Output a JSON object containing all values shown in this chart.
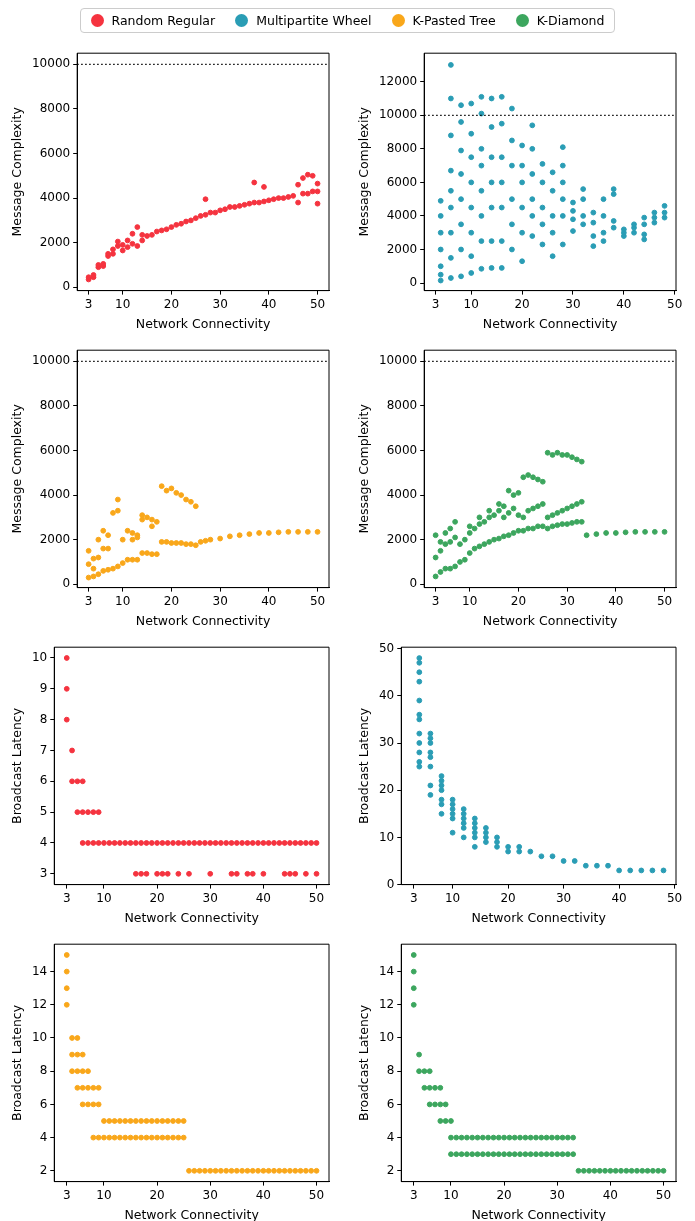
{
  "chart_data": [
    {
      "type": "scatter",
      "xlabel": "Network Connectivity",
      "ylabel": "Message Complexity",
      "xlim": [
        0.65,
        52.35
      ],
      "xticks": [
        3,
        10,
        20,
        30,
        40,
        50
      ],
      "ylim": [
        -150,
        10500
      ],
      "yticks": [
        0,
        2000,
        4000,
        6000,
        8000,
        10000
      ],
      "marker": "circle",
      "legend": "top",
      "grid": false,
      "ref_lines": [
        {
          "axis": "y",
          "value": 10000,
          "color": "#000000",
          "line_style": "dotted"
        }
      ],
      "series": [
        {
          "name": "Random Regular",
          "color": "#f5333f",
          "x": [
            3,
            3,
            4,
            4,
            5,
            5,
            6,
            6,
            7,
            7,
            8,
            8,
            9,
            9,
            10,
            10,
            11,
            11,
            12,
            12,
            13,
            13,
            14,
            14,
            15,
            16,
            17,
            18,
            19,
            20,
            21,
            22,
            23,
            24,
            25,
            26,
            27,
            27,
            28,
            29,
            30,
            31,
            32,
            33,
            34,
            35,
            36,
            37,
            37,
            38,
            39,
            39,
            40,
            41,
            42,
            43,
            44,
            45,
            46,
            46,
            47,
            47,
            48,
            48,
            49,
            49,
            50,
            50,
            50
          ],
          "values": [
            350,
            450,
            450,
            550,
            900,
            1000,
            950,
            1050,
            1400,
            1500,
            1500,
            1700,
            1850,
            2050,
            1650,
            1900,
            1800,
            2100,
            1950,
            2400,
            1850,
            2700,
            2100,
            2350,
            2300,
            2350,
            2500,
            2550,
            2600,
            2700,
            2800,
            2850,
            2950,
            3000,
            3100,
            3200,
            3250,
            3950,
            3350,
            3350,
            3450,
            3500,
            3600,
            3600,
            3650,
            3700,
            3750,
            3800,
            4700,
            3800,
            3850,
            4500,
            3900,
            3950,
            4000,
            4000,
            4050,
            4100,
            3800,
            4600,
            4200,
            4900,
            4200,
            5050,
            4300,
            5000,
            3750,
            4300,
            4650
          ]
        }
      ]
    },
    {
      "type": "scatter",
      "xlabel": "Network Connectivity",
      "ylabel": "Message Complexity",
      "xlim": [
        0.75,
        50.25
      ],
      "xticks": [
        3,
        10,
        20,
        30,
        40,
        50
      ],
      "ylim": [
        -450,
        13700
      ],
      "yticks": [
        0,
        2000,
        4000,
        6000,
        8000,
        10000,
        12000
      ],
      "marker": "circle",
      "legend": "top",
      "grid": false,
      "ref_lines": [
        {
          "axis": "y",
          "value": 10000,
          "color": "#000000",
          "line_style": "dotted"
        }
      ],
      "series": [
        {
          "name": "Multipartite Wheel",
          "color": "#2a9db5",
          "x": [
            4,
            4,
            4,
            4,
            4,
            4,
            4,
            6,
            6,
            6,
            6,
            6,
            6,
            6,
            6,
            6,
            8,
            8,
            8,
            8,
            8,
            8,
            8,
            8,
            10,
            10,
            10,
            10,
            10,
            10,
            10,
            10,
            12,
            12,
            12,
            12,
            12,
            12,
            12,
            12,
            14,
            14,
            14,
            14,
            14,
            14,
            14,
            16,
            16,
            16,
            16,
            16,
            16,
            16,
            18,
            18,
            18,
            18,
            18,
            18,
            20,
            20,
            20,
            20,
            20,
            20,
            22,
            22,
            22,
            22,
            22,
            22,
            24,
            24,
            24,
            24,
            24,
            26,
            26,
            26,
            26,
            26,
            28,
            28,
            28,
            28,
            28,
            28,
            30,
            30,
            30,
            30,
            32,
            32,
            32,
            32,
            34,
            34,
            34,
            34,
            36,
            36,
            36,
            36,
            38,
            38,
            38,
            38,
            40,
            40,
            40,
            42,
            42,
            42,
            44,
            44,
            44,
            44,
            46,
            46,
            46,
            48,
            48,
            48
          ],
          "values": [
            150,
            500,
            1000,
            2000,
            3000,
            4000,
            4900,
            300,
            1500,
            3000,
            4500,
            5500,
            6700,
            8800,
            11000,
            13000,
            400,
            2000,
            3500,
            5000,
            6500,
            7900,
            9600,
            10600,
            600,
            1600,
            3000,
            4500,
            6000,
            7500,
            8900,
            10700,
            850,
            2500,
            4000,
            5500,
            7000,
            8000,
            10100,
            11100,
            900,
            2500,
            4500,
            6000,
            7500,
            9300,
            11000,
            900,
            2500,
            4500,
            6000,
            7500,
            9500,
            11100,
            2000,
            3500,
            5000,
            7000,
            8500,
            10400,
            1300,
            3000,
            4500,
            6000,
            7000,
            8200,
            2800,
            4000,
            5000,
            6500,
            8000,
            9400,
            2300,
            3500,
            4500,
            6000,
            7100,
            1600,
            3000,
            4000,
            5500,
            6600,
            2300,
            4000,
            5000,
            6000,
            7000,
            8100,
            3100,
            3800,
            4300,
            4800,
            3500,
            4000,
            5000,
            5600,
            2200,
            2800,
            3600,
            4200,
            2500,
            3000,
            4000,
            5000,
            3300,
            3700,
            5300,
            5600,
            2800,
            3000,
            3200,
            3000,
            3300,
            3500,
            2600,
            2900,
            3500,
            3900,
            3600,
            3900,
            4200,
            3900,
            4200,
            4600
          ]
        }
      ]
    },
    {
      "type": "scatter",
      "xlabel": "Network Connectivity",
      "ylabel": "Message Complexity",
      "xlim": [
        0.65,
        52.35
      ],
      "xticks": [
        3,
        10,
        20,
        30,
        40,
        50
      ],
      "ylim": [
        -150,
        10500
      ],
      "yticks": [
        0,
        2000,
        4000,
        6000,
        8000,
        10000
      ],
      "marker": "circle",
      "legend": "top",
      "grid": false,
      "ref_lines": [
        {
          "axis": "y",
          "value": 10000,
          "color": "#000000",
          "line_style": "dotted"
        }
      ],
      "series": [
        {
          "name": "K-Pasted Tree",
          "color": "#f9a71a",
          "x": [
            3,
            4,
            5,
            6,
            7,
            8,
            9,
            10,
            11,
            12,
            13,
            14,
            15,
            16,
            17,
            18,
            19,
            20,
            21,
            22,
            23,
            24,
            25,
            26,
            27,
            28,
            30,
            32,
            34,
            36,
            38,
            40,
            42,
            44,
            46,
            48,
            50,
            3,
            4,
            5,
            6,
            7,
            8,
            9,
            10,
            11,
            12,
            13,
            14,
            15,
            16,
            17,
            18,
            19,
            20,
            21,
            22,
            23,
            24,
            25,
            3,
            4,
            5,
            6,
            7,
            9,
            12,
            13,
            14,
            16
          ],
          "values": [
            300,
            350,
            450,
            600,
            650,
            700,
            800,
            950,
            1100,
            1100,
            1100,
            1400,
            1400,
            1350,
            1350,
            1900,
            1900,
            1850,
            1850,
            1850,
            1800,
            1800,
            1750,
            1900,
            1950,
            2000,
            2050,
            2150,
            2200,
            2250,
            2300,
            2300,
            2330,
            2350,
            2350,
            2350,
            2350,
            1500,
            1150,
            2000,
            2400,
            2200,
            3200,
            3800,
            2000,
            2400,
            2300,
            2200,
            3100,
            3000,
            2900,
            2800,
            4400,
            4200,
            4300,
            4100,
            4000,
            3800,
            3700,
            3500,
            900,
            700,
            1200,
            1600,
            1600,
            3300,
            2000,
            2100,
            2900,
            2600
          ]
        }
      ]
    },
    {
      "type": "scatter",
      "xlabel": "Network Connectivity",
      "ylabel": "Message Complexity",
      "xlim": [
        0.65,
        52.35
      ],
      "xticks": [
        3,
        10,
        20,
        30,
        40,
        50
      ],
      "ylim": [
        -150,
        10500
      ],
      "yticks": [
        0,
        2000,
        4000,
        6000,
        8000,
        10000
      ],
      "marker": "circle",
      "legend": "top",
      "grid": false,
      "ref_lines": [
        {
          "axis": "y",
          "value": 10000,
          "color": "#000000",
          "line_style": "dotted"
        }
      ],
      "series": [
        {
          "name": "K-Diamond",
          "color": "#3ca65e",
          "x": [
            3,
            4,
            5,
            6,
            7,
            8,
            9,
            10,
            11,
            12,
            13,
            14,
            15,
            16,
            17,
            18,
            19,
            20,
            21,
            22,
            23,
            24,
            25,
            26,
            27,
            28,
            29,
            30,
            31,
            32,
            33,
            34,
            36,
            38,
            40,
            42,
            44,
            46,
            48,
            50,
            3,
            4,
            5,
            6,
            7,
            8,
            9,
            10,
            11,
            12,
            13,
            14,
            15,
            16,
            17,
            18,
            19,
            20,
            21,
            22,
            23,
            24,
            25,
            26,
            27,
            28,
            29,
            30,
            31,
            32,
            33,
            3,
            4,
            5,
            6,
            7,
            10,
            12,
            14,
            16,
            17,
            18,
            19,
            20,
            21,
            22,
            23,
            24,
            25,
            26,
            27,
            28,
            29,
            30,
            31,
            32,
            33
          ],
          "values": [
            350,
            550,
            700,
            700,
            800,
            1000,
            1100,
            1400,
            1600,
            1700,
            1800,
            1900,
            2000,
            2050,
            2150,
            2200,
            2300,
            2400,
            2400,
            2500,
            2500,
            2600,
            2600,
            2500,
            2600,
            2650,
            2700,
            2700,
            2750,
            2800,
            2800,
            2200,
            2250,
            2300,
            2300,
            2330,
            2350,
            2350,
            2350,
            2350,
            1200,
            1500,
            1800,
            1900,
            2100,
            1800,
            2000,
            2300,
            2500,
            2700,
            2800,
            3000,
            3100,
            3300,
            3000,
            3200,
            3400,
            3100,
            3000,
            3300,
            3400,
            3500,
            3600,
            3000,
            3100,
            3200,
            3300,
            3400,
            3500,
            3600,
            3700,
            2200,
            1900,
            2300,
            2500,
            2800,
            2600,
            3000,
            3300,
            3600,
            3500,
            4200,
            4000,
            4100,
            4800,
            4900,
            4800,
            4700,
            4600,
            5900,
            5800,
            5900,
            5800,
            5800,
            5700,
            5600,
            5500
          ]
        }
      ]
    },
    {
      "type": "scatter",
      "xlabel": "Network Connectivity",
      "ylabel": "Broadcast Latency",
      "xlim": [
        0.65,
        52.35
      ],
      "xticks": [
        3,
        10,
        20,
        30,
        40,
        50
      ],
      "ylim": [
        2.65,
        10.35
      ],
      "yticks": [
        3,
        4,
        5,
        6,
        7,
        8,
        9,
        10
      ],
      "marker": "circle",
      "grid": false,
      "series": [
        {
          "color": "#f5333f",
          "x": [
            3,
            3,
            3,
            4,
            4,
            5,
            6,
            5,
            6,
            7,
            8,
            9,
            6,
            7,
            8,
            9,
            10,
            11,
            12,
            13,
            14,
            15,
            16,
            17,
            18,
            19,
            20,
            21,
            22,
            23,
            24,
            25,
            26,
            27,
            28,
            29,
            30,
            31,
            32,
            33,
            34,
            35,
            36,
            37,
            38,
            39,
            40,
            41,
            42,
            43,
            44,
            45,
            46,
            47,
            48,
            49,
            50,
            16,
            17,
            18,
            20,
            21,
            22,
            24,
            26,
            30,
            34,
            35,
            37,
            38,
            40,
            44,
            45,
            46,
            48,
            50
          ],
          "values": [
            10,
            9,
            8,
            7,
            6,
            6,
            6,
            5,
            5,
            5,
            5,
            5,
            4,
            4,
            4,
            4,
            4,
            4,
            4,
            4,
            4,
            4,
            4,
            4,
            4,
            4,
            4,
            4,
            4,
            4,
            4,
            4,
            4,
            4,
            4,
            4,
            4,
            4,
            4,
            4,
            4,
            4,
            4,
            4,
            4,
            4,
            4,
            4,
            4,
            4,
            4,
            4,
            4,
            4,
            4,
            4,
            4,
            3,
            3,
            3,
            3,
            3,
            3,
            3,
            3,
            3,
            3,
            3,
            3,
            3,
            3,
            3,
            3,
            3,
            3,
            3
          ]
        }
      ]
    },
    {
      "type": "scatter",
      "xlabel": "Network Connectivity",
      "ylabel": "Broadcast Latency",
      "xlim": [
        0.75,
        50.25
      ],
      "xticks": [
        3,
        10,
        20,
        30,
        40,
        50
      ],
      "ylim": [
        0,
        50.3
      ],
      "yticks": [
        0,
        10,
        20,
        30,
        40,
        50
      ],
      "marker": "circle",
      "grid": false,
      "series": [
        {
          "color": "#2a9db5",
          "x": [
            4,
            4,
            4,
            4,
            4,
            4,
            4,
            4,
            4,
            4,
            4,
            4,
            6,
            6,
            6,
            6,
            6,
            6,
            6,
            6,
            8,
            8,
            8,
            8,
            8,
            8,
            8,
            10,
            10,
            10,
            10,
            10,
            10,
            12,
            12,
            12,
            12,
            12,
            12,
            14,
            14,
            14,
            14,
            14,
            14,
            16,
            16,
            16,
            16,
            18,
            18,
            18,
            20,
            20,
            22,
            22,
            24,
            26,
            28,
            30,
            32,
            34,
            36,
            38,
            40,
            42,
            44,
            46,
            48
          ],
          "values": [
            25,
            26,
            28,
            30,
            32,
            35,
            36,
            39,
            43,
            45,
            47,
            48,
            19,
            21,
            25,
            27,
            28,
            30,
            31,
            32,
            15,
            17,
            18,
            20,
            21,
            22,
            23,
            11,
            14,
            15,
            16,
            17,
            18,
            10,
            12,
            13,
            14,
            15,
            16,
            8,
            10,
            11,
            12,
            13,
            14,
            9,
            10,
            11,
            12,
            8,
            9,
            10,
            7,
            8,
            7,
            8,
            7,
            6,
            6,
            5,
            5,
            4,
            4,
            4,
            3,
            3,
            3,
            3,
            3
          ]
        }
      ]
    },
    {
      "type": "scatter",
      "xlabel": "Network Connectivity",
      "ylabel": "Broadcast Latency",
      "xlim": [
        0.65,
        52.35
      ],
      "xticks": [
        3,
        10,
        20,
        30,
        40,
        50
      ],
      "ylim": [
        1.35,
        15.65
      ],
      "yticks": [
        2,
        4,
        6,
        8,
        10,
        12,
        14
      ],
      "marker": "circle",
      "grid": false,
      "series": [
        {
          "color": "#f9a71a",
          "x": [
            3,
            3,
            3,
            3,
            4,
            5,
            4,
            5,
            6,
            4,
            5,
            6,
            7,
            5,
            6,
            7,
            8,
            9,
            6,
            7,
            8,
            9,
            10,
            11,
            12,
            13,
            14,
            15,
            16,
            17,
            18,
            19,
            20,
            21,
            22,
            23,
            24,
            25,
            8,
            9,
            10,
            11,
            12,
            13,
            14,
            15,
            16,
            17,
            18,
            19,
            20,
            21,
            22,
            23,
            24,
            25,
            26,
            27,
            28,
            29,
            30,
            31,
            32,
            33,
            34,
            35,
            36,
            37,
            38,
            39,
            40,
            41,
            42,
            43,
            44,
            45,
            46,
            47,
            48,
            49,
            50
          ],
          "values": [
            15,
            14,
            13,
            12,
            10,
            10,
            9,
            9,
            9,
            8,
            8,
            8,
            8,
            7,
            7,
            7,
            7,
            7,
            6,
            6,
            6,
            6,
            5,
            5,
            5,
            5,
            5,
            5,
            5,
            5,
            5,
            5,
            5,
            5,
            5,
            5,
            5,
            5,
            4,
            4,
            4,
            4,
            4,
            4,
            4,
            4,
            4,
            4,
            4,
            4,
            4,
            4,
            4,
            4,
            4,
            4,
            2,
            2,
            2,
            2,
            2,
            2,
            2,
            2,
            2,
            2,
            2,
            2,
            2,
            2,
            2,
            2,
            2,
            2,
            2,
            2,
            2,
            2,
            2,
            2,
            2
          ]
        }
      ]
    },
    {
      "type": "scatter",
      "xlabel": "Network Connectivity",
      "ylabel": "Broadcast Latency",
      "xlim": [
        0.65,
        52.35
      ],
      "xticks": [
        3,
        10,
        20,
        30,
        40,
        50
      ],
      "ylim": [
        1.35,
        15.65
      ],
      "yticks": [
        2,
        4,
        6,
        8,
        10,
        12,
        14
      ],
      "marker": "circle",
      "grid": false,
      "series": [
        {
          "color": "#3ca65e",
          "x": [
            3,
            3,
            3,
            3,
            4,
            4,
            5,
            6,
            5,
            6,
            7,
            8,
            6,
            7,
            8,
            9,
            8,
            9,
            10,
            10,
            11,
            12,
            13,
            14,
            15,
            16,
            17,
            18,
            19,
            20,
            21,
            22,
            23,
            24,
            25,
            26,
            27,
            28,
            29,
            30,
            31,
            32,
            33,
            10,
            11,
            12,
            13,
            14,
            15,
            16,
            17,
            18,
            19,
            20,
            21,
            22,
            23,
            24,
            25,
            26,
            27,
            28,
            29,
            30,
            31,
            32,
            33,
            34,
            35,
            36,
            37,
            38,
            39,
            40,
            41,
            42,
            43,
            44,
            45,
            46,
            47,
            48,
            49,
            50
          ],
          "values": [
            15,
            14,
            13,
            12,
            9,
            8,
            8,
            8,
            7,
            7,
            7,
            7,
            6,
            6,
            6,
            6,
            5,
            5,
            5,
            4,
            4,
            4,
            4,
            4,
            4,
            4,
            4,
            4,
            4,
            4,
            4,
            4,
            4,
            4,
            4,
            4,
            4,
            4,
            4,
            4,
            4,
            4,
            4,
            3,
            3,
            3,
            3,
            3,
            3,
            3,
            3,
            3,
            3,
            3,
            3,
            3,
            3,
            3,
            3,
            3,
            3,
            3,
            3,
            3,
            3,
            3,
            3,
            2,
            2,
            2,
            2,
            2,
            2,
            2,
            2,
            2,
            2,
            2,
            2,
            2,
            2,
            2,
            2,
            2
          ]
        }
      ]
    }
  ]
}
